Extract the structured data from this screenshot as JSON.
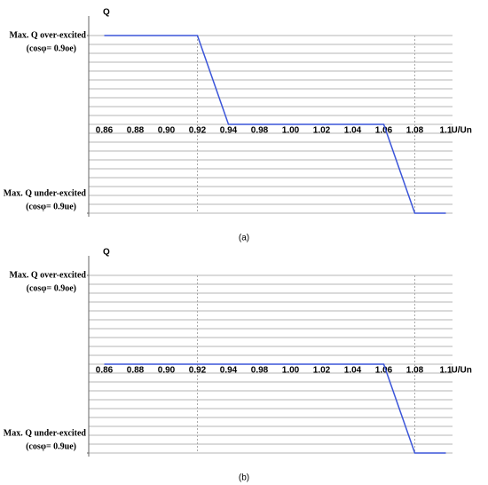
{
  "chart_data": [
    {
      "type": "line",
      "caption": "(a)",
      "ylabel": "Q",
      "xlabel": "U/Un",
      "categories": [
        "0.86",
        "0.88",
        "0.90",
        "0.92",
        "0.94",
        "0.98",
        "1.00",
        "1.02",
        "1.04",
        "1.06",
        "1.08",
        "1.1"
      ],
      "series": [
        {
          "color": "#3b55d9",
          "values": [
            1,
            1,
            1,
            1,
            0,
            0,
            0,
            0,
            0,
            0,
            -1,
            -1
          ]
        }
      ],
      "ylim": [
        -1,
        1
      ],
      "yticks": [
        {
          "value": 1,
          "label": "Max. Q over-excited"
        },
        {
          "value": -1,
          "label": "Max. Q under-excited"
        }
      ],
      "ytick_notes": [
        "(cosφ= 0.9oe)",
        "(cosφ= 0.9ue)"
      ],
      "grid": true
    },
    {
      "type": "line",
      "caption": "(b)",
      "ylabel": "Q",
      "xlabel": "U/Un",
      "categories": [
        "0.86",
        "0.88",
        "0.90",
        "0.92",
        "0.94",
        "0.98",
        "1.00",
        "1.02",
        "1.04",
        "1.06",
        "1.08",
        "1.1"
      ],
      "series": [
        {
          "color": "#3b55d9",
          "values": [
            0,
            0,
            0,
            0,
            0,
            0,
            0,
            0,
            0,
            0,
            -1,
            -1
          ]
        }
      ],
      "ylim": [
        -1,
        1
      ],
      "yticks": [
        {
          "value": 1,
          "label": "Max. Q over-excited"
        },
        {
          "value": -1,
          "label": "Max. Q under-excited"
        }
      ],
      "ytick_notes": [
        "(cosφ= 0.9oe)",
        "(cosφ= 0.9ue)"
      ],
      "grid": true
    }
  ]
}
